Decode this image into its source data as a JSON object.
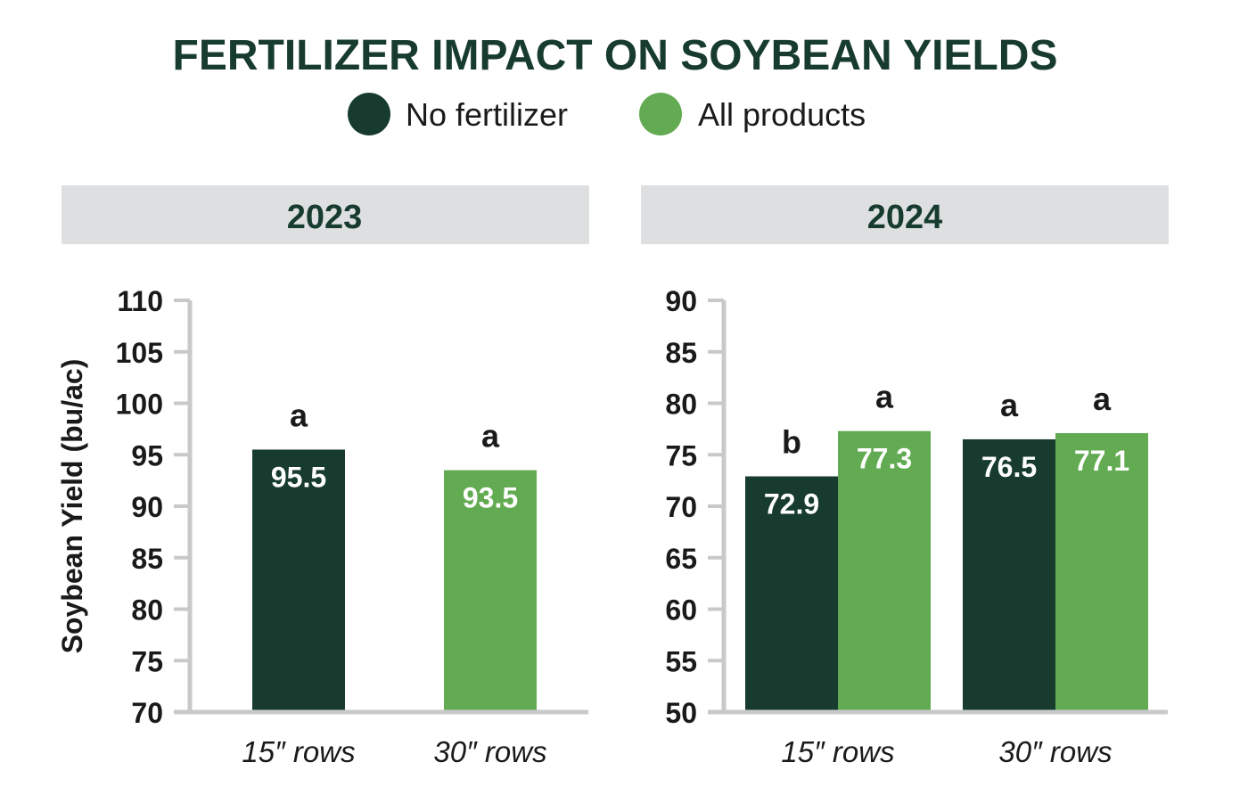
{
  "title": "FERTILIZER IMPACT ON SOYBEAN YIELDS",
  "legend": [
    {
      "label": "No fertilizer",
      "color": "#173b2f"
    },
    {
      "label": "All products",
      "color": "#62ab52"
    }
  ],
  "colors": {
    "title": "#173b2f",
    "header_bg": "#dedfe0",
    "axis": "#c8c9ca",
    "text": "#1a1a1a",
    "bar_label": "#ffffff"
  },
  "chart_data": [
    {
      "type": "bar",
      "panel_title": "2023",
      "ylabel": "Soybean Yield (bu/ac)",
      "ylim": [
        70,
        110
      ],
      "yticks": [
        70,
        75,
        80,
        85,
        90,
        95,
        100,
        105,
        110
      ],
      "categories": [
        "15″ rows",
        "30″ rows"
      ],
      "bars": [
        {
          "category": "15″ rows",
          "series": "No fertilizer",
          "value": 95.5,
          "label": "95.5",
          "sig": "a"
        },
        {
          "category": "30″ rows",
          "series": "All products",
          "value": 93.5,
          "label": "93.5",
          "sig": "a"
        }
      ]
    },
    {
      "type": "bar",
      "panel_title": "2024",
      "ylabel": "",
      "ylim": [
        50,
        90
      ],
      "yticks": [
        50,
        55,
        60,
        65,
        70,
        75,
        80,
        85,
        90
      ],
      "categories": [
        "15″ rows",
        "30″ rows"
      ],
      "series": [
        {
          "name": "No fertilizer",
          "values": [
            72.9,
            76.5
          ],
          "labels": [
            "72.9",
            "76.5"
          ],
          "sig": [
            "b",
            "a"
          ]
        },
        {
          "name": "All products",
          "values": [
            77.3,
            77.1
          ],
          "labels": [
            "77.3",
            "77.1"
          ],
          "sig": [
            "a",
            "a"
          ]
        }
      ]
    }
  ]
}
